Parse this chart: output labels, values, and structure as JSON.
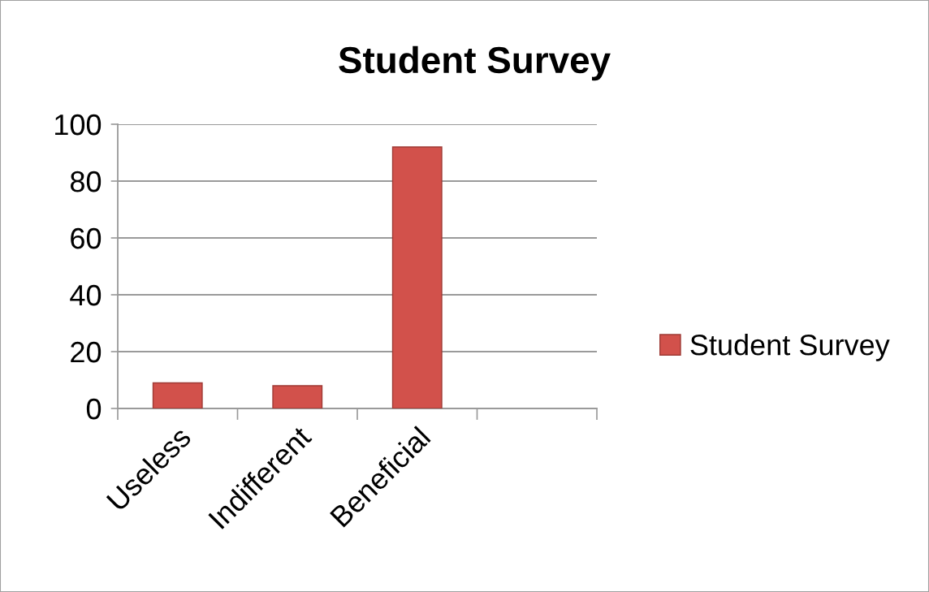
{
  "chart_data": {
    "type": "bar",
    "title": "Student Survey",
    "categories": [
      "Useless",
      "Indifferent",
      "Beneficial",
      null
    ],
    "series": [
      {
        "name": "Student Survey",
        "color": "#d2514b",
        "values": [
          9,
          8,
          92,
          null
        ]
      }
    ],
    "ylim": [
      0,
      100
    ],
    "yticks": [
      0,
      20,
      40,
      60,
      80,
      100
    ],
    "grid": "y",
    "legend": "right"
  }
}
